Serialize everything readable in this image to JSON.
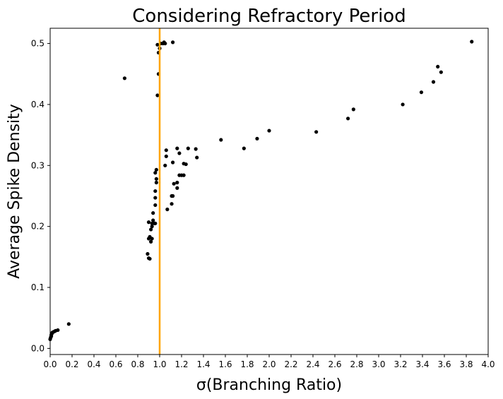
{
  "chart_data": {
    "type": "scatter",
    "title": "Considering Refractory Period",
    "xlabel": "σ(Branching Ratio)",
    "ylabel": "Average Spike Density",
    "xlim": [
      0.0,
      4.0
    ],
    "ylim": [
      -0.01,
      0.525
    ],
    "xticks": [
      "0.0",
      "0.2",
      "0.4",
      "0.6",
      "0.8",
      "1.0",
      "1.2",
      "1.4",
      "1.6",
      "1.8",
      "2.0",
      "2.2",
      "2.4",
      "2.6",
      "2.8",
      "3.0",
      "3.2",
      "3.4",
      "3.6",
      "3.8",
      "4.0"
    ],
    "yticks": [
      "0.0",
      "0.1",
      "0.2",
      "0.3",
      "0.4",
      "0.5"
    ],
    "grid": false,
    "point_color": "#000000",
    "reference_line": {
      "orientation": "vertical",
      "x": 1.0,
      "color": "#FFA500"
    },
    "series": [
      {
        "points": [
          [
            0.0,
            0.015
          ],
          [
            0.005,
            0.018
          ],
          [
            0.01,
            0.02
          ],
          [
            0.01,
            0.022
          ],
          [
            0.015,
            0.024
          ],
          [
            0.02,
            0.026
          ],
          [
            0.03,
            0.027
          ],
          [
            0.04,
            0.028
          ],
          [
            0.05,
            0.029
          ],
          [
            0.07,
            0.03
          ],
          [
            0.17,
            0.04
          ],
          [
            0.68,
            0.443
          ],
          [
            0.89,
            0.155
          ],
          [
            0.9,
            0.148
          ],
          [
            0.91,
            0.147
          ],
          [
            0.9,
            0.18
          ],
          [
            0.91,
            0.183
          ],
          [
            0.92,
            0.175
          ],
          [
            0.93,
            0.18
          ],
          [
            0.92,
            0.195
          ],
          [
            0.93,
            0.2
          ],
          [
            0.9,
            0.207
          ],
          [
            0.93,
            0.205
          ],
          [
            0.94,
            0.21
          ],
          [
            0.95,
            0.205
          ],
          [
            0.94,
            0.222
          ],
          [
            0.96,
            0.205
          ],
          [
            0.96,
            0.235
          ],
          [
            0.96,
            0.247
          ],
          [
            0.96,
            0.258
          ],
          [
            0.97,
            0.272
          ],
          [
            0.97,
            0.278
          ],
          [
            0.96,
            0.288
          ],
          [
            0.97,
            0.293
          ],
          [
            0.98,
            0.415
          ],
          [
            0.99,
            0.45
          ],
          [
            0.98,
            0.498
          ],
          [
            0.99,
            0.485
          ],
          [
            1.0,
            0.492
          ],
          [
            1.01,
            0.5
          ],
          [
            1.03,
            0.5
          ],
          [
            1.04,
            0.502
          ],
          [
            1.12,
            0.502
          ],
          [
            1.05,
            0.5
          ],
          [
            1.07,
            0.228
          ],
          [
            1.11,
            0.237
          ],
          [
            1.11,
            0.25
          ],
          [
            1.12,
            0.25
          ],
          [
            1.13,
            0.27
          ],
          [
            1.16,
            0.263
          ],
          [
            1.16,
            0.272
          ],
          [
            1.18,
            0.284
          ],
          [
            1.2,
            0.284
          ],
          [
            1.22,
            0.284
          ],
          [
            1.05,
            0.3
          ],
          [
            1.06,
            0.315
          ],
          [
            1.06,
            0.325
          ],
          [
            1.12,
            0.305
          ],
          [
            1.16,
            0.328
          ],
          [
            1.18,
            0.32
          ],
          [
            1.22,
            0.303
          ],
          [
            1.24,
            0.302
          ],
          [
            1.26,
            0.328
          ],
          [
            1.33,
            0.327
          ],
          [
            1.34,
            0.313
          ],
          [
            1.56,
            0.342
          ],
          [
            1.77,
            0.328
          ],
          [
            1.89,
            0.344
          ],
          [
            2.0,
            0.357
          ],
          [
            2.43,
            0.355
          ],
          [
            2.72,
            0.377
          ],
          [
            2.77,
            0.392
          ],
          [
            3.22,
            0.4
          ],
          [
            3.39,
            0.42
          ],
          [
            3.5,
            0.437
          ],
          [
            3.54,
            0.462
          ],
          [
            3.57,
            0.453
          ],
          [
            3.85,
            0.503
          ]
        ]
      }
    ]
  }
}
